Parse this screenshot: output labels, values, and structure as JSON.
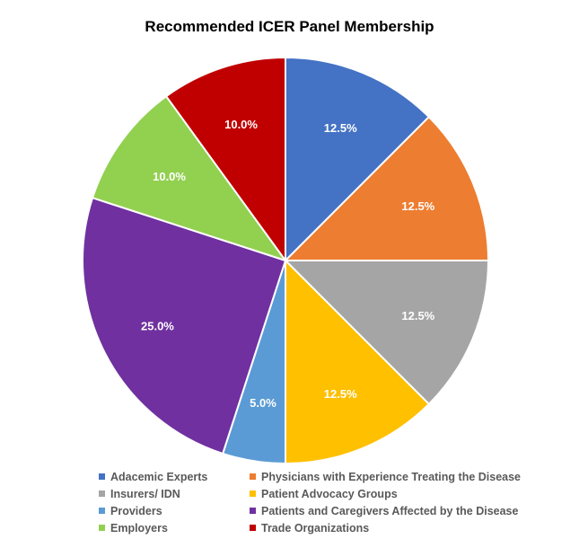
{
  "chart_data": {
    "type": "pie",
    "title": "Recommended ICER Panel Membership",
    "categories": [
      "Adacemic Experts",
      "Physicians with Experience Treating the Disease",
      "Insurers/ IDN",
      "Patient Advocacy Groups",
      "Providers",
      "Patients and Caregivers Affected by the Disease",
      "Employers",
      "Trade Organizations"
    ],
    "values": [
      12.5,
      12.5,
      12.5,
      12.5,
      5.0,
      25.0,
      10.0,
      10.0
    ],
    "value_labels": [
      "12.5%",
      "12.5%",
      "12.5%",
      "12.5%",
      "5.0%",
      "25.0%",
      "10.0%",
      "10.0%"
    ],
    "colors": [
      "#4472C4",
      "#ED7D31",
      "#A5A5A5",
      "#FFC000",
      "#5B9BD5",
      "#7030A0",
      "#92D050",
      "#C00000"
    ],
    "legend_placement": "bottom"
  }
}
